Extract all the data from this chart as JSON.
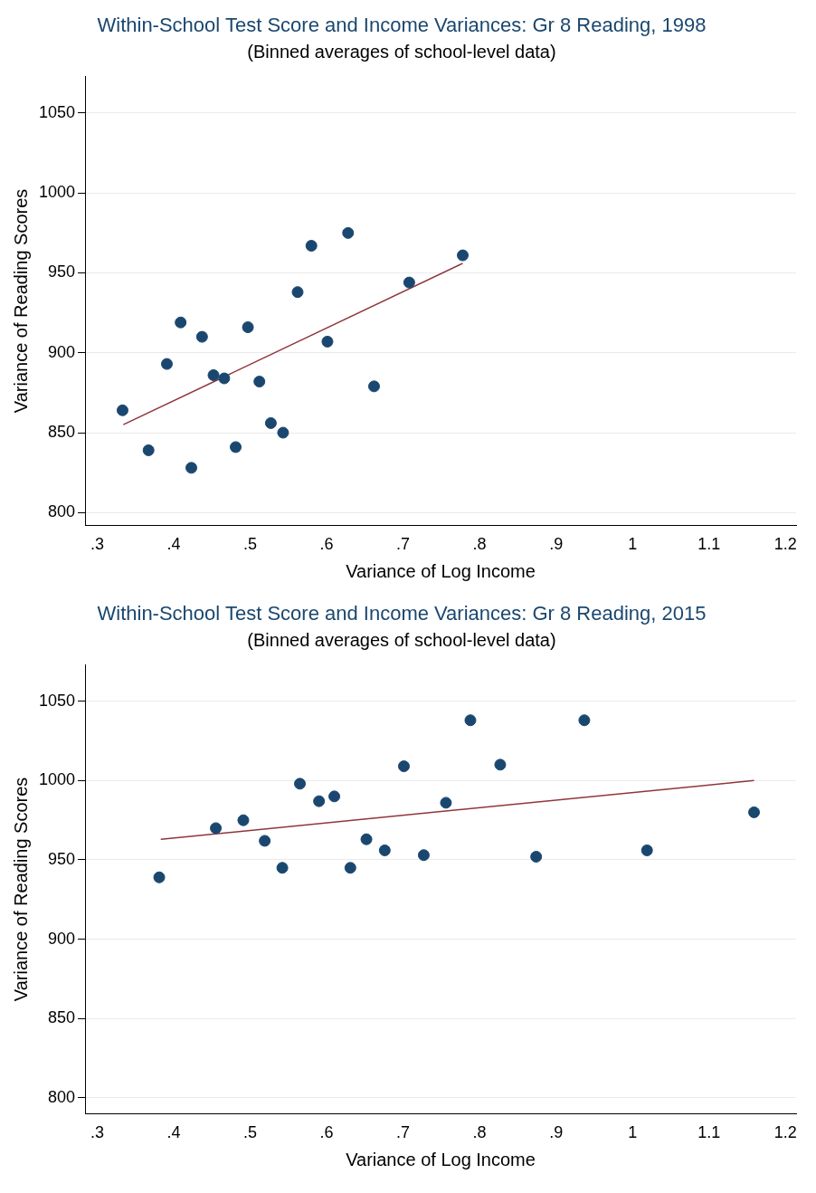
{
  "chart_data": [
    {
      "type": "scatter",
      "title": "Within-School Test Score and Income Variances: Gr 8 Reading, 1998",
      "subtitle": "(Binned averages of school-level data)",
      "xlabel": "Variance of Log Income",
      "ylabel": "Variance of Reading Scores",
      "xlim": [
        0.284,
        1.214
      ],
      "ylim": [
        792,
        1073
      ],
      "xticks": [
        {
          "value": 0.3,
          "label": ".3"
        },
        {
          "value": 0.4,
          "label": ".4"
        },
        {
          "value": 0.5,
          "label": ".5"
        },
        {
          "value": 0.6,
          "label": ".6"
        },
        {
          "value": 0.7,
          "label": ".7"
        },
        {
          "value": 0.8,
          "label": ".8"
        },
        {
          "value": 0.9,
          "label": ".9"
        },
        1,
        1.1,
        1.2
      ],
      "yticks": [
        800,
        850,
        900,
        950,
        1000,
        1050
      ],
      "grid": "y",
      "series": [
        {
          "type": "scatter",
          "marker": "circle",
          "color": "#1a476f",
          "x": [
            0.333,
            0.367,
            0.391,
            0.409,
            0.423,
            0.437,
            0.452,
            0.466,
            0.481,
            0.497,
            0.512,
            0.527,
            0.543,
            0.562,
            0.58,
            0.601,
            0.628,
            0.662,
            0.708,
            0.778
          ],
          "values": [
            864,
            839,
            893,
            919,
            828,
            910,
            886,
            884,
            841,
            916,
            882,
            856,
            850,
            938,
            967,
            907,
            975,
            879,
            944,
            961
          ]
        },
        {
          "type": "line",
          "color": "#90353b",
          "x": [
            0.334,
            0.778
          ],
          "values": [
            855,
            956
          ]
        }
      ]
    },
    {
      "type": "scatter",
      "title": "Within-School Test Score and Income Variances: Gr 8 Reading, 2015",
      "subtitle": "(Binned averages of school-level data)",
      "xlabel": "Variance of Log Income",
      "ylabel": "Variance of Reading Scores",
      "xlim": [
        0.284,
        1.214
      ],
      "ylim": [
        790,
        1073
      ],
      "xticks": [
        {
          "value": 0.3,
          "label": ".3"
        },
        {
          "value": 0.4,
          "label": ".4"
        },
        {
          "value": 0.5,
          "label": ".5"
        },
        {
          "value": 0.6,
          "label": ".6"
        },
        {
          "value": 0.7,
          "label": ".7"
        },
        {
          "value": 0.8,
          "label": ".8"
        },
        {
          "value": 0.9,
          "label": ".9"
        },
        1,
        1.1,
        1.2
      ],
      "yticks": [
        800,
        850,
        900,
        950,
        1000,
        1050
      ],
      "grid": "y",
      "series": [
        {
          "type": "scatter",
          "marker": "circle",
          "color": "#1a476f",
          "x": [
            0.381,
            0.455,
            0.491,
            0.519,
            0.542,
            0.565,
            0.59,
            0.61,
            0.631,
            0.652,
            0.676,
            0.701,
            0.727,
            0.756,
            0.788,
            0.827,
            0.874,
            0.937,
            1.019,
            1.159
          ],
          "values": [
            939,
            970,
            975,
            962,
            945,
            998,
            987,
            990,
            945,
            963,
            956,
            1009,
            953,
            986,
            1038,
            1010,
            952,
            1038,
            956,
            980
          ]
        },
        {
          "type": "line",
          "color": "#90353b",
          "x": [
            0.383,
            1.159
          ],
          "values": [
            963,
            1000
          ]
        }
      ]
    }
  ]
}
